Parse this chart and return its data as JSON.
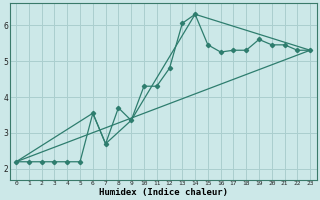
{
  "title": "",
  "xlabel": "Humidex (Indice chaleur)",
  "bg_color": "#cce8e8",
  "grid_color": "#aacece",
  "line_color": "#2e7d6e",
  "xlim": [
    -0.5,
    23.5
  ],
  "ylim": [
    1.7,
    6.6
  ],
  "xticks": [
    0,
    1,
    2,
    3,
    4,
    5,
    6,
    7,
    8,
    9,
    10,
    11,
    12,
    13,
    14,
    15,
    16,
    17,
    18,
    19,
    20,
    21,
    22,
    23
  ],
  "yticks": [
    2,
    3,
    4,
    5,
    6
  ],
  "series1_x": [
    0,
    1,
    2,
    3,
    4,
    5,
    6,
    7,
    8,
    9,
    10,
    11,
    12,
    13,
    14,
    15,
    16,
    17,
    18,
    19,
    20,
    21,
    22,
    23
  ],
  "series1_y": [
    2.2,
    2.2,
    2.2,
    2.2,
    2.2,
    2.2,
    3.55,
    2.7,
    3.7,
    3.35,
    4.3,
    4.3,
    4.8,
    6.05,
    6.3,
    5.45,
    5.25,
    5.3,
    5.3,
    5.6,
    5.45,
    5.45,
    5.3,
    5.3
  ],
  "series2_x": [
    0,
    23
  ],
  "series2_y": [
    2.2,
    5.3
  ],
  "series3_x": [
    0,
    6,
    7,
    9,
    14,
    23
  ],
  "series3_y": [
    2.2,
    3.55,
    2.7,
    3.35,
    6.3,
    5.3
  ]
}
